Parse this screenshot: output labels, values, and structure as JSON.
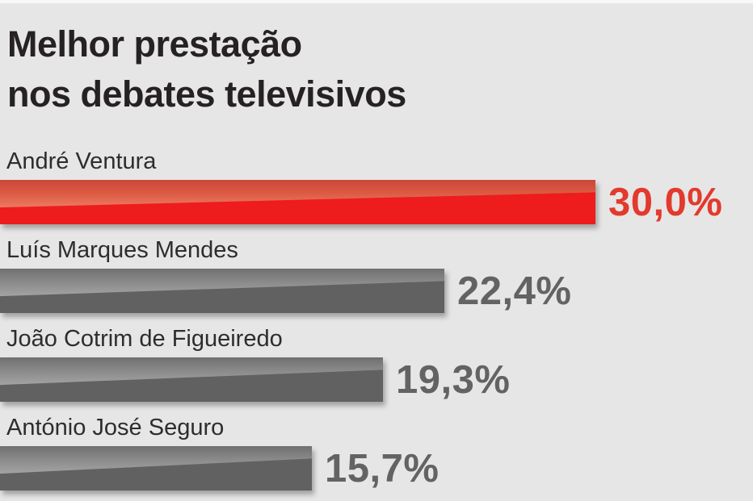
{
  "background_color": "#e7e6e6",
  "title": {
    "line1": "Melhor prestação",
    "line2": "nos debates televisivos",
    "color": "#262223"
  },
  "chart_data": {
    "type": "bar",
    "orientation": "horizontal",
    "title": "Melhor prestação nos debates televisivos",
    "categories": [
      "André Ventura",
      "Luís Marques Mendes",
      "João Cotrim de Figueiredo",
      "António José Seguro"
    ],
    "values": [
      30.0,
      22.4,
      19.3,
      15.7
    ],
    "value_labels": [
      "30,0%",
      "22,4%",
      "19,3%",
      "15,7%"
    ],
    "unit": "%",
    "decimal_separator": ",",
    "xlim": [
      0,
      30
    ],
    "grid": false,
    "legend": false,
    "highlight_index": 0,
    "colors": {
      "highlight_bar": "#ee1c1d",
      "highlight_bar_gloss_top": "#ca4836",
      "highlight_bar_gloss_bottom": "#ec7a60",
      "highlight_value_text": "#e23a2d",
      "default_bar": "#616161",
      "default_bar_gloss_top": "#707070",
      "default_bar_gloss_bottom": "#a3a3a3",
      "default_value_text": "#636363",
      "label_text": "#2e2d2d"
    }
  },
  "bars": [
    {
      "label": "André Ventura",
      "value": 30.0,
      "value_label": "30,0%",
      "variant": "highlight"
    },
    {
      "label": "Luís Marques Mendes",
      "value": 22.4,
      "value_label": "22,4%",
      "variant": "default"
    },
    {
      "label": "João Cotrim de Figueiredo",
      "value": 19.3,
      "value_label": "19,3%",
      "variant": "default"
    },
    {
      "label": "António José Seguro",
      "value": 15.7,
      "value_label": "15,7%",
      "variant": "default"
    }
  ]
}
